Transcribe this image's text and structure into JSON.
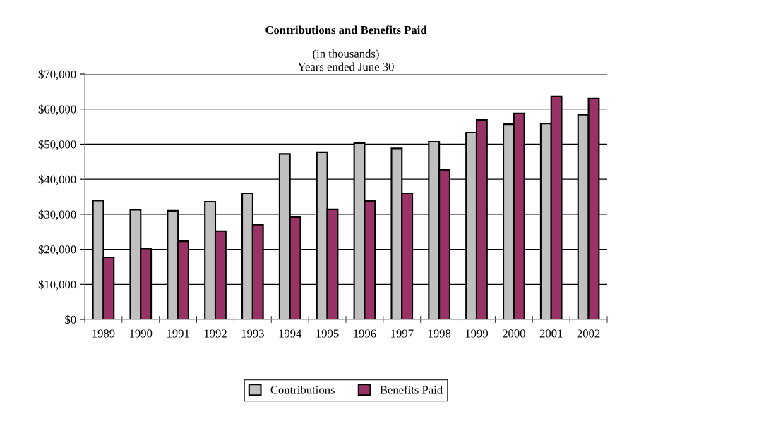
{
  "chart_data": {
    "type": "bar",
    "title": "Contributions and Benefits Paid",
    "subtitle": "(in thousands)\nYears ended June 30",
    "categories": [
      "1989",
      "1990",
      "1991",
      "1992",
      "1993",
      "1994",
      "1995",
      "1996",
      "1997",
      "1998",
      "1999",
      "2000",
      "2001",
      "2002"
    ],
    "series": [
      {
        "name": "Contributions",
        "color": "#c0c0c0",
        "values": [
          33900,
          31300,
          31000,
          33600,
          36000,
          47200,
          47700,
          50300,
          48800,
          50700,
          53300,
          55700,
          55900,
          58400
        ]
      },
      {
        "name": "Benefits Paid",
        "color": "#993366",
        "values": [
          17700,
          20200,
          22300,
          25200,
          27000,
          29200,
          31400,
          33800,
          36000,
          42700,
          56900,
          58800,
          63600,
          63000
        ]
      }
    ],
    "ylim": [
      0,
      70000
    ],
    "yticks": [
      {
        "value": 0,
        "label": "$0"
      },
      {
        "value": 10000,
        "label": "$10,000"
      },
      {
        "value": 20000,
        "label": "$20,000"
      },
      {
        "value": 30000,
        "label": "$30,000"
      },
      {
        "value": 40000,
        "label": "$40,000"
      },
      {
        "value": 50000,
        "label": "$50,000"
      },
      {
        "value": 60000,
        "label": "$60,000"
      },
      {
        "value": 70000,
        "label": "$70,000"
      }
    ],
    "grid": "y",
    "legend": "bottom"
  }
}
